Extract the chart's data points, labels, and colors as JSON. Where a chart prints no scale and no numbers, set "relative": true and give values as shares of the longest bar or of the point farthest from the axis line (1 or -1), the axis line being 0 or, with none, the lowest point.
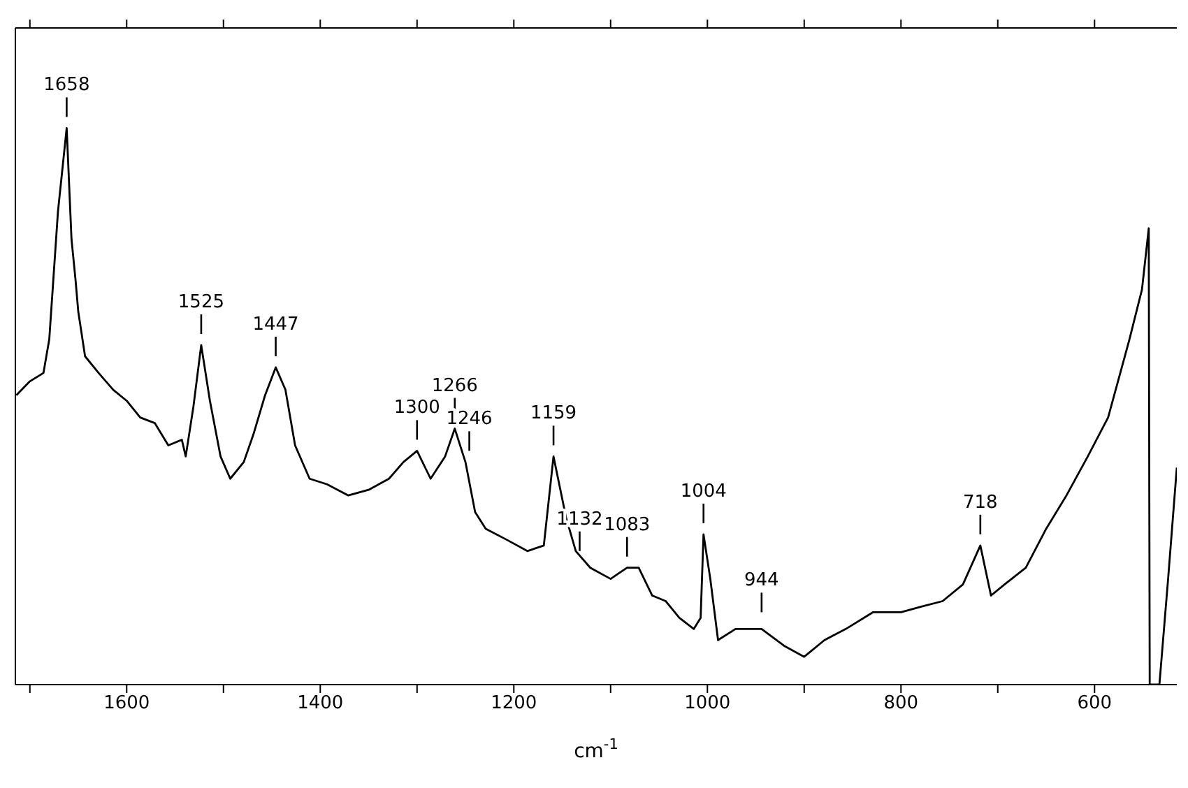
{
  "chart_data": {
    "type": "line",
    "relative": true,
    "xlabel": "cm$^{-1}$",
    "xlim": [
      1715,
      515
    ],
    "xticks": [
      {
        "value": 1700,
        "label": null
      },
      1600,
      {
        "value": 1500,
        "label": null
      },
      1400,
      {
        "value": 1300,
        "label": null
      },
      1200,
      {
        "value": 1100,
        "label": null
      },
      1000,
      {
        "value": 900,
        "label": null
      },
      800,
      {
        "value": 700,
        "label": null
      },
      600
    ],
    "x": [
      1714,
      1700,
      1686,
      1680,
      1671,
      1662,
      1657,
      1653,
      1650,
      1643,
      1629,
      1614,
      1600,
      1586,
      1571,
      1557,
      1543,
      1539,
      1531,
      1523,
      1514,
      1503,
      1493,
      1479,
      1469,
      1457,
      1446,
      1436,
      1426,
      1411,
      1393,
      1371,
      1350,
      1329,
      1314,
      1300,
      1286,
      1271,
      1261,
      1250,
      1240,
      1229,
      1207,
      1186,
      1169,
      1159,
      1146,
      1136,
      1121,
      1100,
      1083,
      1071,
      1057,
      1043,
      1029,
      1014,
      1007,
      1004,
      997,
      989,
      971,
      944,
      921,
      900,
      879,
      857,
      829,
      800,
      779,
      757,
      736,
      718,
      707,
      693,
      671,
      650,
      629,
      607,
      586,
      564,
      551,
      544,
      543,
      533,
      524,
      515
    ],
    "series": [
      {
        "color": "#000000",
        "values": [
          0.52,
          0.545,
          0.56,
          0.62,
          0.85,
          1.0,
          0.8,
          0.73,
          0.67,
          0.59,
          0.56,
          0.53,
          0.51,
          0.48,
          0.47,
          0.43,
          0.44,
          0.41,
          0.5,
          0.61,
          0.51,
          0.41,
          0.37,
          0.4,
          0.45,
          0.52,
          0.57,
          0.53,
          0.43,
          0.37,
          0.36,
          0.34,
          0.35,
          0.37,
          0.4,
          0.42,
          0.37,
          0.41,
          0.46,
          0.4,
          0.31,
          0.28,
          0.26,
          0.24,
          0.25,
          0.41,
          0.3,
          0.24,
          0.21,
          0.19,
          0.21,
          0.21,
          0.16,
          0.15,
          0.12,
          0.1,
          0.12,
          0.27,
          0.19,
          0.08,
          0.1,
          0.1,
          0.07,
          0.05,
          0.08,
          0.1,
          0.13,
          0.13,
          0.14,
          0.15,
          0.18,
          0.25,
          0.16,
          0.18,
          0.21,
          0.28,
          0.34,
          0.41,
          0.48,
          0.62,
          0.71,
          0.82,
          0,
          0,
          0.19,
          0.39
        ]
      }
    ],
    "annotations": [
      {
        "text": "1658",
        "x": 1662,
        "y": 1.0
      },
      {
        "text": "1525",
        "x": 1523,
        "y": 0.61
      },
      {
        "text": "1447",
        "x": 1446,
        "y": 0.57
      },
      {
        "text": "1300",
        "x": 1300,
        "y": 0.42
      },
      {
        "text": "1266",
        "x": 1261,
        "y": 0.46
      },
      {
        "text": "1246",
        "x": 1246,
        "y": 0.4
      },
      {
        "text": "1159",
        "x": 1159,
        "y": 0.41
      },
      {
        "text": "1132",
        "x": 1132,
        "y": 0.22
      },
      {
        "text": "1083",
        "x": 1083,
        "y": 0.21
      },
      {
        "text": "1004",
        "x": 1004,
        "y": 0.27
      },
      {
        "text": "944",
        "x": 944,
        "y": 0.11
      },
      {
        "text": "718",
        "x": 718,
        "y": 0.25
      }
    ]
  }
}
